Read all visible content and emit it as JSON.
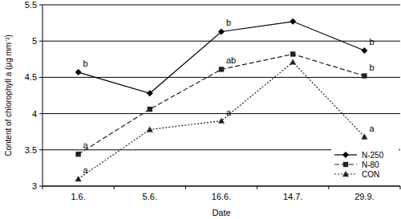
{
  "chart_data": {
    "type": "line",
    "x_label": "Date",
    "y_label": "Content of chlorophyll a (μg mm⁻²)",
    "categories": [
      "1.6.",
      "5.6.",
      "16.6.",
      "14.7.",
      "29.9."
    ],
    "series": [
      {
        "name": "N-250",
        "color": "#000000",
        "marker": "diamond",
        "line_style": "solid",
        "values": [
          4.57,
          4.28,
          5.13,
          5.27,
          4.87
        ],
        "annotations": [
          "b",
          null,
          "b",
          null,
          "b"
        ]
      },
      {
        "name": "N-80",
        "color": "#222222",
        "marker": "square",
        "line_style": "dashed",
        "values": [
          3.44,
          4.06,
          4.61,
          4.82,
          4.52
        ],
        "annotations": [
          "a",
          null,
          "ab",
          null,
          "b"
        ]
      },
      {
        "name": "CON",
        "color": "#222222",
        "marker": "triangle",
        "line_style": "dotted",
        "values": [
          3.1,
          3.78,
          3.9,
          4.71,
          3.68
        ],
        "annotations": [
          "a",
          null,
          "a",
          null,
          "a"
        ]
      }
    ],
    "ylim": [
      3,
      5.5
    ],
    "yticks": [
      3,
      3.5,
      4,
      4.5,
      5,
      5.5
    ],
    "grid": true,
    "legend": "lower right"
  }
}
